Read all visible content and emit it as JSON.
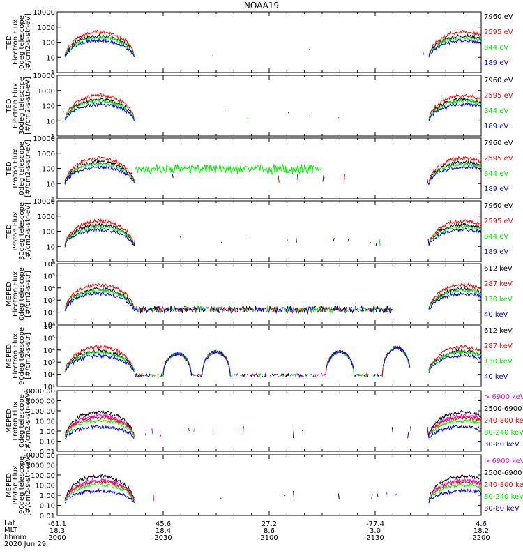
{
  "title": "NOAA19",
  "colors": {
    "black": "#000000",
    "red": "#ff0000",
    "green": "#00ee00",
    "blue": "#0000ff",
    "magenta": "#ff00ff"
  },
  "chart_data": [
    {
      "type": "line",
      "panel": 1,
      "ylabel": [
        "TED",
        "Electron Flux",
        "0deg telescope",
        "[#/cm2-s-str-eV]"
      ],
      "yscale": "log",
      "ylim": [
        1,
        10000
      ],
      "yticks": [
        "1",
        "10",
        "100",
        "1000",
        "10000"
      ],
      "legend": [
        {
          "label": "7960 eV",
          "color": "black"
        },
        {
          "label": "2595 eV",
          "color": "red"
        },
        {
          "label": "844 eV",
          "color": "green"
        },
        {
          "label": "189 eV",
          "color": "blue"
        }
      ]
    },
    {
      "type": "line",
      "panel": 2,
      "ylabel": [
        "TED",
        "Electron Flux",
        "30deg telescope",
        "[#/cm2-s-str-eV]"
      ],
      "yscale": "log",
      "ylim": [
        1,
        10000
      ],
      "yticks": [
        "1",
        "10",
        "100",
        "1000",
        "10000"
      ],
      "legend": [
        {
          "label": "7960 eV",
          "color": "black"
        },
        {
          "label": "2595 eV",
          "color": "red"
        },
        {
          "label": "844 eV",
          "color": "green"
        },
        {
          "label": "189 eV",
          "color": "blue"
        }
      ]
    },
    {
      "type": "line",
      "panel": 3,
      "ylabel": [
        "TED",
        "Proton Flux",
        "0deg telescope",
        "[#/cm2-s-str-eV]"
      ],
      "yscale": "log",
      "ylim": [
        1,
        10000
      ],
      "yticks": [
        "1",
        "10",
        "100",
        "1000",
        "10000"
      ],
      "legend": [
        {
          "label": "7960 eV",
          "color": "black"
        },
        {
          "label": "2595 eV",
          "color": "red"
        },
        {
          "label": "844 eV",
          "color": "green"
        },
        {
          "label": "189 eV",
          "color": "blue"
        }
      ]
    },
    {
      "type": "line",
      "panel": 4,
      "ylabel": [
        "TED",
        "Proton Flux",
        "30deg telescope",
        "[#/cm2-s-str-eV]"
      ],
      "yscale": "log",
      "ylim": [
        1,
        10000
      ],
      "yticks": [
        "1",
        "10",
        "100",
        "1000",
        "10000"
      ],
      "legend": [
        {
          "label": "7960 eV",
          "color": "black"
        },
        {
          "label": "2595 eV",
          "color": "red"
        },
        {
          "label": "844 eV",
          "color": "green"
        },
        {
          "label": "189 eV",
          "color": "blue"
        }
      ]
    },
    {
      "type": "line",
      "panel": 5,
      "ylabel": [
        "MEPED",
        "Electron Flux",
        "0deg telescope",
        "[#/cm2-s-str]"
      ],
      "yscale": "log",
      "ylim": [
        10,
        1000000
      ],
      "yticks": [
        "10¹",
        "10²",
        "10³",
        "10⁴",
        "10⁵",
        "10⁶"
      ],
      "legend": [
        {
          "label": "612 keV",
          "color": "black"
        },
        {
          "label": "287 keV",
          "color": "red"
        },
        {
          "label": "130 keV",
          "color": "green"
        },
        {
          "label": "40 keV",
          "color": "blue"
        }
      ]
    },
    {
      "type": "line",
      "panel": 6,
      "ylabel": [
        "MEPED",
        "Electron Flux",
        "90deg telescope",
        "[#/cm2-s-str]"
      ],
      "yscale": "log",
      "ylim": [
        10,
        1000000
      ],
      "yticks": [
        "10¹",
        "10²",
        "10³",
        "10⁴",
        "10⁵",
        "10⁶"
      ],
      "legend": [
        {
          "label": "612 keV",
          "color": "black"
        },
        {
          "label": "287 keV",
          "color": "red"
        },
        {
          "label": "130 keV",
          "color": "green"
        },
        {
          "label": "40 keV",
          "color": "blue"
        }
      ]
    },
    {
      "type": "line",
      "panel": 7,
      "ylabel": [
        "MEPED",
        "Proton Flux",
        "0deg telescope",
        "[#/cm2-s-str-keV]"
      ],
      "yscale": "log",
      "ylim": [
        0.01,
        10000
      ],
      "yticks": [
        "0.01",
        "0.10",
        "1.00",
        "10.00",
        "100.00",
        "1000.00",
        "10000.00"
      ],
      "legend": [
        {
          "label": "> 6900 keV",
          "color": "magenta"
        },
        {
          "label": "2500-6900",
          "color": "black"
        },
        {
          "label": "240-800 keV",
          "color": "red"
        },
        {
          "label": "80-240 keV",
          "color": "green"
        },
        {
          "label": "30-80 keV",
          "color": "blue"
        }
      ]
    },
    {
      "type": "line",
      "panel": 8,
      "ylabel": [
        "MEPED",
        "Proton Flux",
        "90deg telescope",
        "[#/cm2-s-str-keV]"
      ],
      "yscale": "log",
      "ylim": [
        0.01,
        10000
      ],
      "yticks": [
        "0.01",
        "0.10",
        "1.00",
        "10.00",
        "100.00",
        "1000.00",
        "10000.00"
      ],
      "legend": [
        {
          "label": "> 6900 keV",
          "color": "magenta"
        },
        {
          "label": "2500-6900",
          "color": "black"
        },
        {
          "label": "240-800 keV",
          "color": "red"
        },
        {
          "label": "80-240 keV",
          "color": "green"
        },
        {
          "label": "30-80 keV",
          "color": "blue"
        }
      ]
    }
  ],
  "xaxis": {
    "row_labels": [
      "Lat",
      "MLT",
      "hhmm"
    ],
    "date": "2020 Jun 29",
    "columns": [
      {
        "lat": "-61.1",
        "mlt": "18.3",
        "hhmm": "2000",
        "time": 0
      },
      {
        "lat": "45.6",
        "mlt": "18.4",
        "hhmm": "2030",
        "time": 30
      },
      {
        "lat": "27.2",
        "mlt": "8.6",
        "hhmm": "2100",
        "time": 60
      },
      {
        "lat": "-77.4",
        "mlt": "3.0",
        "hhmm": "2130",
        "time": 90
      },
      {
        "lat": "4.6",
        "mlt": "18.2",
        "hhmm": "2200",
        "time": 120
      }
    ]
  }
}
